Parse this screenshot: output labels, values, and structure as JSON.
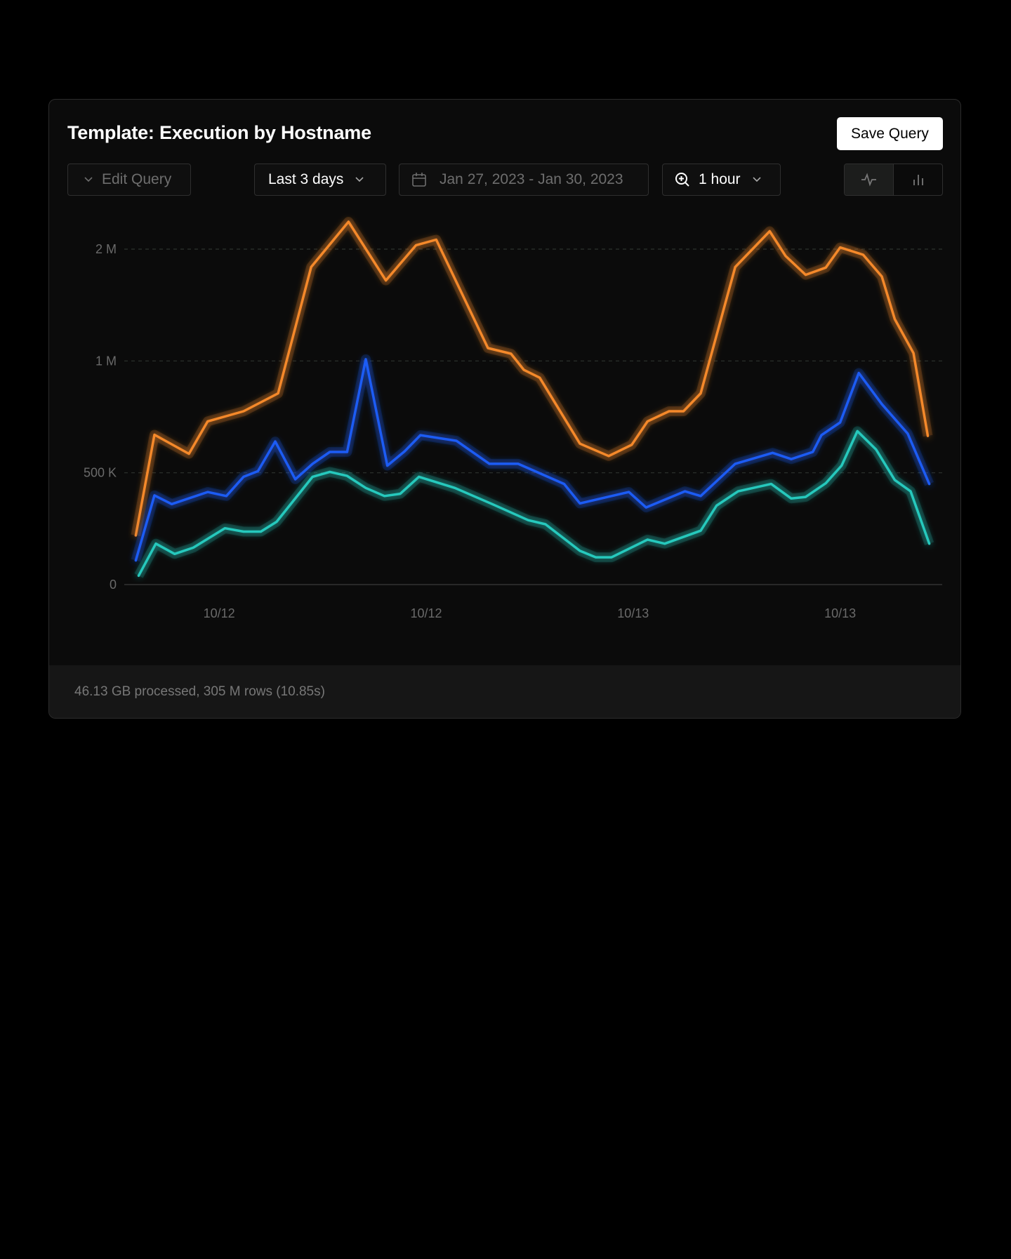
{
  "header": {
    "title": "Template: Execution by Hostname",
    "save_label": "Save Query"
  },
  "controls": {
    "edit_query": "Edit Query",
    "range": "Last 3 days",
    "date_range": "Jan 27, 2023 - Jan 30, 2023",
    "interval": "1 hour",
    "view_toggle": [
      {
        "icon": "line-chart-icon",
        "active": true
      },
      {
        "icon": "bar-chart-icon",
        "active": false
      }
    ]
  },
  "footer": {
    "stats": "46.13 GB processed, 305 M rows (10.85s)"
  },
  "chart_data": {
    "type": "line",
    "title": "",
    "xlabel": "",
    "ylabel": "",
    "grid": true,
    "legend": "none",
    "y_ticks": [
      {
        "value": 0,
        "label": "0"
      },
      {
        "value": 500000,
        "label": "500 K"
      },
      {
        "value": 1000000,
        "label": "1 M"
      },
      {
        "value": 2000000,
        "label": "2 M"
      }
    ],
    "x_ticks": [
      {
        "value": "10/12 00:00",
        "label": "10/12"
      },
      {
        "value": "10/12 12:00",
        "label": "10/12"
      },
      {
        "value": "10/13 00:00",
        "label": "10/13"
      },
      {
        "value": "10/13 12:00",
        "label": "10/13"
      }
    ],
    "xlim": [
      "10/11 18:30",
      "10/13 17:55"
    ],
    "series": [
      {
        "color": "#f5892a",
        "x": [
          "10/11 19:10",
          "10/11 20:15",
          "10/11 22:15",
          "10/11 23:20",
          "10/12 01:25",
          "10/12 03:25",
          "10/12 05:20",
          "10/12 07:30",
          "10/12 09:40",
          "10/12 11:25",
          "10/12 12:35",
          "10/12 15:35",
          "10/12 16:55",
          "10/12 17:40",
          "10/12 18:35",
          "10/12 20:55",
          "10/12 22:35",
          "10/12 23:55",
          "10/13 00:50",
          "10/13 02:05",
          "10/13 02:55",
          "10/13 03:55",
          "10/13 05:55",
          "10/13 07:55",
          "10/13 08:50",
          "10/13 10:00",
          "10/13 11:10",
          "10/13 12:00",
          "10/13 13:20",
          "10/13 14:25",
          "10/13 15:10",
          "10/13 16:15",
          "10/13 17:05"
        ],
        "values": [
          220000,
          670000,
          585000,
          730000,
          775000,
          855000,
          1840000,
          2245000,
          1720000,
          2035000,
          2085000,
          1115000,
          1065000,
          960000,
          925000,
          630000,
          575000,
          625000,
          730000,
          775000,
          775000,
          855000,
          1840000,
          2160000,
          1940000,
          1770000,
          1835000,
          2015000,
          1950000,
          1755000,
          1375000,
          1070000,
          665000
        ]
      },
      {
        "color": "#1f5cf5",
        "x": [
          "10/11 19:10",
          "10/11 20:15",
          "10/11 21:15",
          "10/11 23:20",
          "10/12 00:25",
          "10/12 01:25",
          "10/12 02:15",
          "10/12 03:15",
          "10/12 04:25",
          "10/12 05:25",
          "10/12 06:25",
          "10/12 07:25",
          "10/12 08:30",
          "10/12 09:45",
          "10/12 10:45",
          "10/12 11:40",
          "10/12 13:45",
          "10/12 15:40",
          "10/12 17:20",
          "10/12 20:00",
          "10/12 20:55",
          "10/12 23:45",
          "10/13 00:45",
          "10/13 03:00",
          "10/13 03:55",
          "10/13 05:55",
          "10/13 08:05",
          "10/13 09:10",
          "10/13 10:25",
          "10/13 10:55",
          "10/13 12:00",
          "10/13 13:05",
          "10/13 14:25",
          "10/13 15:55",
          "10/13 17:10"
        ],
        "values": [
          108000,
          399000,
          360000,
          414000,
          396000,
          482000,
          507000,
          640000,
          471000,
          540000,
          593000,
          593000,
          1015000,
          532000,
          596000,
          668000,
          643000,
          540000,
          540000,
          450000,
          363000,
          414000,
          345000,
          417000,
          396000,
          540000,
          589000,
          561000,
          593000,
          668000,
          725000,
          946000,
          807000,
          675000,
          450000
        ]
      },
      {
        "color": "#25c9bd",
        "x": [
          "10/11 19:20",
          "10/11 20:20",
          "10/11 21:25",
          "10/11 22:30",
          "10/12 00:20",
          "10/12 01:25",
          "10/12 02:25",
          "10/12 03:20",
          "10/12 05:25",
          "10/12 06:25",
          "10/12 07:25",
          "10/12 08:30",
          "10/12 09:35",
          "10/12 10:30",
          "10/12 11:35",
          "10/12 13:40",
          "10/12 15:50",
          "10/12 17:55",
          "10/12 18:55",
          "10/12 20:55",
          "10/12 21:50",
          "10/12 22:45",
          "10/13 00:50",
          "10/13 01:50",
          "10/13 03:55",
          "10/13 04:50",
          "10/13 06:05",
          "10/13 08:00",
          "10/13 09:10",
          "10/13 10:00",
          "10/13 11:10",
          "10/13 12:05",
          "10/13 13:00",
          "10/13 14:05",
          "10/13 15:10",
          "10/13 16:05",
          "10/13 17:10"
        ],
        "values": [
          40000,
          183000,
          137000,
          165000,
          252000,
          237000,
          237000,
          281000,
          482000,
          504000,
          486000,
          432000,
          396000,
          406000,
          482000,
          432000,
          360000,
          288000,
          270000,
          151000,
          122000,
          122000,
          201000,
          183000,
          241000,
          353000,
          417000,
          450000,
          385000,
          392000,
          453000,
          532000,
          686000,
          604000,
          468000,
          417000,
          183000
        ]
      }
    ]
  }
}
